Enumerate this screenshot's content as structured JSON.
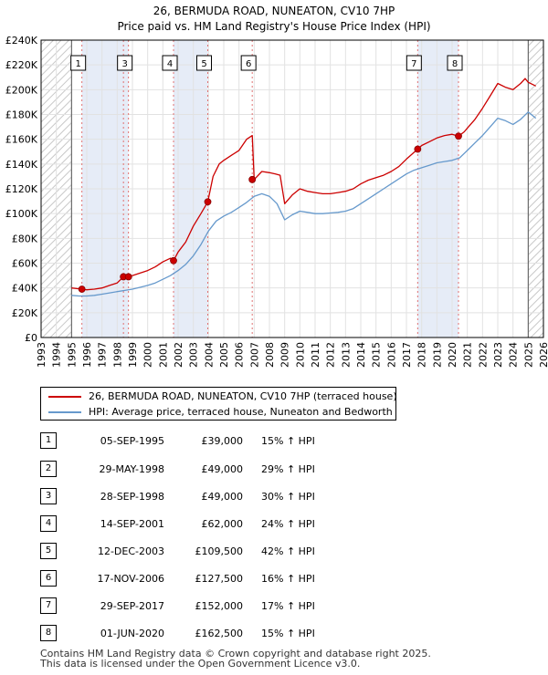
{
  "title_line1": "26, BERMUDA ROAD, NUNEATON, CV10 7HP",
  "title_line2": "Price paid vs. HM Land Registry's House Price Index (HPI)",
  "chart_data": {
    "type": "line",
    "title": "26, BERMUDA ROAD, NUNEATON, CV10 7HP — Price paid vs. HM Land Registry's House Price Index (HPI)",
    "xlabel": "",
    "ylabel": "",
    "xlim": [
      1993,
      2026
    ],
    "ylim": [
      0,
      240000
    ],
    "x_ticks": [
      "1993",
      "1994",
      "1995",
      "1996",
      "1997",
      "1998",
      "1999",
      "2000",
      "2001",
      "2002",
      "2003",
      "2004",
      "2005",
      "2006",
      "2007",
      "2008",
      "2009",
      "2010",
      "2011",
      "2012",
      "2013",
      "2014",
      "2015",
      "2016",
      "2017",
      "2018",
      "2019",
      "2020",
      "2021",
      "2022",
      "2023",
      "2024",
      "2025",
      "2026"
    ],
    "y_ticks": [
      {
        "value": 0,
        "label": "£0"
      },
      {
        "value": 20000,
        "label": "£20K"
      },
      {
        "value": 40000,
        "label": "£40K"
      },
      {
        "value": 60000,
        "label": "£60K"
      },
      {
        "value": 80000,
        "label": "£80K"
      },
      {
        "value": 100000,
        "label": "£100K"
      },
      {
        "value": 120000,
        "label": "£120K"
      },
      {
        "value": 140000,
        "label": "£140K"
      },
      {
        "value": 160000,
        "label": "£160K"
      },
      {
        "value": 180000,
        "label": "£180K"
      },
      {
        "value": 200000,
        "label": "£200K"
      },
      {
        "value": 220000,
        "label": "£220K"
      },
      {
        "value": 240000,
        "label": "£240K"
      }
    ],
    "grid": true,
    "hatched_ranges": [
      [
        1993.0,
        1995.0
      ],
      [
        2025.0,
        2026.0
      ]
    ],
    "shaded_ranges": [
      [
        1995.68,
        1998.74
      ],
      [
        2001.7,
        2003.95
      ],
      [
        2017.74,
        2020.42
      ]
    ],
    "series": [
      {
        "name": "26, BERMUDA ROAD, NUNEATON, CV10 7HP (terraced house)",
        "color": "#cc0000",
        "x": [
          1995.0,
          1995.68,
          1996.0,
          1996.5,
          1997.0,
          1997.5,
          1998.0,
          1998.41,
          1998.74,
          1999.0,
          1999.5,
          2000.0,
          2000.5,
          2001.0,
          2001.5,
          2001.7,
          2002.0,
          2002.5,
          2003.0,
          2003.5,
          2003.95,
          2004.3,
          2004.7,
          2005.0,
          2005.5,
          2006.0,
          2006.5,
          2006.87,
          2007.0,
          2007.5,
          2008.0,
          2008.4,
          2008.7,
          2009.0,
          2009.5,
          2010.0,
          2010.5,
          2011.0,
          2011.5,
          2012.0,
          2012.5,
          2013.0,
          2013.5,
          2014.0,
          2014.5,
          2015.0,
          2015.5,
          2016.0,
          2016.5,
          2017.0,
          2017.74,
          2018.0,
          2018.5,
          2019.0,
          2019.5,
          2020.0,
          2020.42,
          2020.8,
          2021.0,
          2021.5,
          2022.0,
          2022.5,
          2023.0,
          2023.5,
          2024.0,
          2024.5,
          2024.8,
          2025.0,
          2025.5
        ],
        "values": [
          40000,
          39000,
          38500,
          39000,
          40000,
          42000,
          44000,
          49000,
          49000,
          50000,
          52000,
          54000,
          57000,
          61000,
          64000,
          62000,
          69000,
          77000,
          90000,
          100000,
          109500,
          130000,
          140000,
          143000,
          147000,
          151000,
          160000,
          163000,
          127500,
          134000,
          133000,
          132000,
          131000,
          108000,
          115000,
          120000,
          118000,
          117000,
          116000,
          116000,
          117000,
          118000,
          120000,
          124000,
          127000,
          129000,
          131000,
          134000,
          138000,
          144000,
          152000,
          155000,
          158000,
          161000,
          163000,
          164000,
          162500,
          166000,
          169000,
          176000,
          185000,
          195000,
          205000,
          202000,
          200000,
          205000,
          209000,
          206000,
          203000
        ]
      },
      {
        "name": "HPI: Average price, terraced house, Nuneaton and Bedworth",
        "color": "#6699cc",
        "x": [
          1995.0,
          1995.5,
          1996.0,
          1996.5,
          1997.0,
          1997.5,
          1998.0,
          1998.5,
          1999.0,
          1999.5,
          2000.0,
          2000.5,
          2001.0,
          2001.5,
          2002.0,
          2002.5,
          2003.0,
          2003.5,
          2004.0,
          2004.5,
          2005.0,
          2005.5,
          2006.0,
          2006.5,
          2007.0,
          2007.5,
          2008.0,
          2008.5,
          2009.0,
          2009.5,
          2010.0,
          2010.5,
          2011.0,
          2011.5,
          2012.0,
          2012.5,
          2013.0,
          2013.5,
          2014.0,
          2014.5,
          2015.0,
          2015.5,
          2016.0,
          2016.5,
          2017.0,
          2017.5,
          2018.0,
          2018.5,
          2019.0,
          2019.5,
          2020.0,
          2020.5,
          2021.0,
          2021.5,
          2022.0,
          2022.5,
          2023.0,
          2023.5,
          2024.0,
          2024.5,
          2025.0,
          2025.5
        ],
        "values": [
          34000,
          33500,
          33500,
          34000,
          35000,
          36000,
          37000,
          38000,
          39000,
          40500,
          42000,
          44000,
          47000,
          50000,
          54000,
          59000,
          66000,
          75000,
          86000,
          94000,
          98000,
          101000,
          105000,
          109000,
          114000,
          116000,
          114000,
          108000,
          95000,
          99000,
          102000,
          101000,
          100000,
          100000,
          100500,
          101000,
          102000,
          104000,
          108000,
          112000,
          116000,
          120000,
          124000,
          128000,
          132000,
          135000,
          137000,
          139000,
          141000,
          142000,
          143000,
          145000,
          151000,
          157000,
          163000,
          170000,
          177000,
          175000,
          172000,
          176000,
          182000,
          177000
        ]
      }
    ],
    "sale_markers": [
      {
        "label": "1",
        "x": 1995.68,
        "value": 39000
      },
      {
        "label": "2",
        "x": 1998.41,
        "value": 49000
      },
      {
        "label": "3",
        "x": 1998.74,
        "value": 49000
      },
      {
        "label": "4",
        "x": 2001.7,
        "value": 62000
      },
      {
        "label": "5",
        "x": 2003.95,
        "value": 109500
      },
      {
        "label": "6",
        "x": 2006.87,
        "value": 127500
      },
      {
        "label": "7",
        "x": 2017.74,
        "value": 152000
      },
      {
        "label": "8",
        "x": 2020.42,
        "value": 162500
      }
    ],
    "top_labels": [
      "1",
      "3",
      "4",
      "5",
      "6",
      "7",
      "8"
    ]
  },
  "legend": {
    "property": "26, BERMUDA ROAD, NUNEATON, CV10 7HP (terraced house)",
    "hpi": "HPI: Average price, terraced house, Nuneaton and Bedworth",
    "property_color": "#cc0000",
    "hpi_color": "#6699cc"
  },
  "sales": [
    {
      "num": "1",
      "date": "05-SEP-1995",
      "price": "£39,000",
      "hpi": "15% ↑ HPI"
    },
    {
      "num": "2",
      "date": "29-MAY-1998",
      "price": "£49,000",
      "hpi": "29% ↑ HPI"
    },
    {
      "num": "3",
      "date": "28-SEP-1998",
      "price": "£49,000",
      "hpi": "30% ↑ HPI"
    },
    {
      "num": "4",
      "date": "14-SEP-2001",
      "price": "£62,000",
      "hpi": "24% ↑ HPI"
    },
    {
      "num": "5",
      "date": "12-DEC-2003",
      "price": "£109,500",
      "hpi": "42% ↑ HPI"
    },
    {
      "num": "6",
      "date": "17-NOV-2006",
      "price": "£127,500",
      "hpi": "16% ↑ HPI"
    },
    {
      "num": "7",
      "date": "29-SEP-2017",
      "price": "£152,000",
      "hpi": "17% ↑ HPI"
    },
    {
      "num": "8",
      "date": "01-JUN-2020",
      "price": "£162,500",
      "hpi": "15% ↑ HPI"
    }
  ],
  "footer": {
    "line1": "Contains HM Land Registry data © Crown copyright and database right 2025.",
    "line2": "This data is licensed under the Open Government Licence v3.0."
  }
}
